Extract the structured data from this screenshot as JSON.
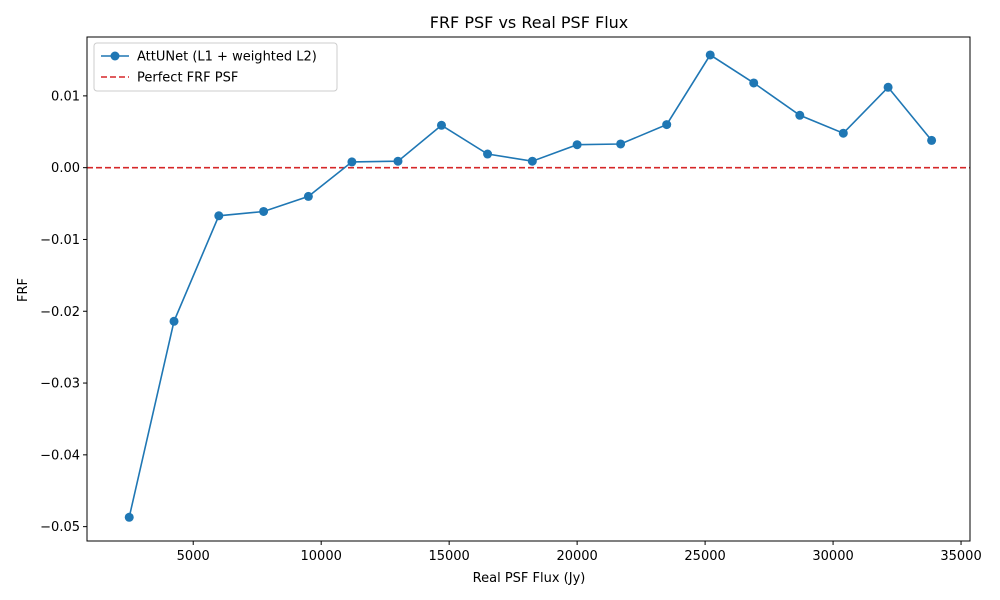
{
  "chart_data": {
    "type": "line",
    "title": "FRF PSF vs Real PSF Flux",
    "xlabel": "Real PSF Flux (Jy)",
    "ylabel": "FRF",
    "xlim": [
      850,
      35350
    ],
    "ylim": [
      -0.052,
      0.0182
    ],
    "xticks": [
      5000,
      10000,
      15000,
      20000,
      25000,
      30000,
      35000
    ],
    "xtick_labels": [
      "5000",
      "10000",
      "15000",
      "20000",
      "25000",
      "30000",
      "35000"
    ],
    "yticks": [
      -0.05,
      -0.04,
      -0.03,
      -0.02,
      -0.01,
      0.0,
      0.01
    ],
    "ytick_labels": [
      "−0.05",
      "−0.04",
      "−0.03",
      "−0.02",
      "−0.01",
      "0.00",
      "0.01"
    ],
    "grid": false,
    "legend_position": "top-left",
    "series": [
      {
        "name": "AttUNet (L1 + weighted L2)",
        "color": "#1f77b4",
        "marker": "circle",
        "x": [
          2500,
          4250,
          6000,
          7750,
          9500,
          11200,
          13000,
          14700,
          16500,
          18250,
          20000,
          21700,
          23500,
          25200,
          26900,
          28700,
          30400,
          32150,
          33850
        ],
        "y": [
          -0.0487,
          -0.0214,
          -0.0067,
          -0.0061,
          -0.004,
          0.0008,
          0.0009,
          0.0059,
          0.0019,
          0.0009,
          0.0032,
          0.0033,
          0.006,
          0.0157,
          0.0118,
          0.0073,
          0.0048,
          0.0112,
          0.0038
        ]
      }
    ],
    "reference_lines": [
      {
        "name": "Perfect FRF PSF",
        "y": 0.0,
        "color": "#d62728",
        "style": "dashed"
      }
    ]
  }
}
